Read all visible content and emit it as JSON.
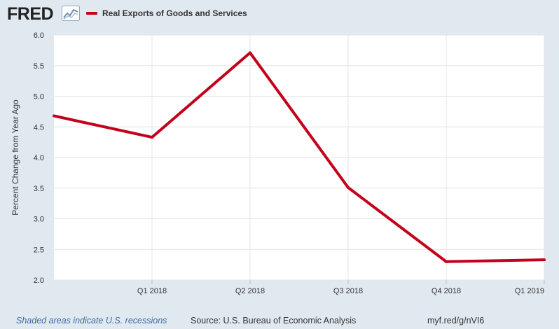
{
  "header": {
    "logo_text": "FRED",
    "legend_label": "Real Exports of Goods and Services",
    "legend_color": "#c4001b"
  },
  "footer": {
    "recession_note": "Shaded areas indicate U.S. recessions",
    "source": "Source: U.S. Bureau of Economic Analysis",
    "short_url": "myf.red/g/nVI6"
  },
  "chart_data": {
    "type": "line",
    "ylabel": "Percent Change from Year Ago",
    "ylim": [
      2.0,
      6.0
    ],
    "yticks": [
      "2.0",
      "2.5",
      "3.0",
      "3.5",
      "4.0",
      "4.5",
      "5.0",
      "5.5",
      "6.0"
    ],
    "xticks": [
      "Q1 2018",
      "Q2 2018",
      "Q3 2018",
      "Q4 2018",
      "Q1 2019"
    ],
    "x": [
      "Q4 2017",
      "Q1 2018",
      "Q2 2018",
      "Q3 2018",
      "Q4 2018",
      "Q1 2019"
    ],
    "grid": true,
    "series": [
      {
        "name": "Real Exports of Goods and Services",
        "color": "#c4001b",
        "values": [
          4.68,
          4.33,
          5.71,
          3.51,
          2.3,
          2.33
        ]
      }
    ]
  }
}
